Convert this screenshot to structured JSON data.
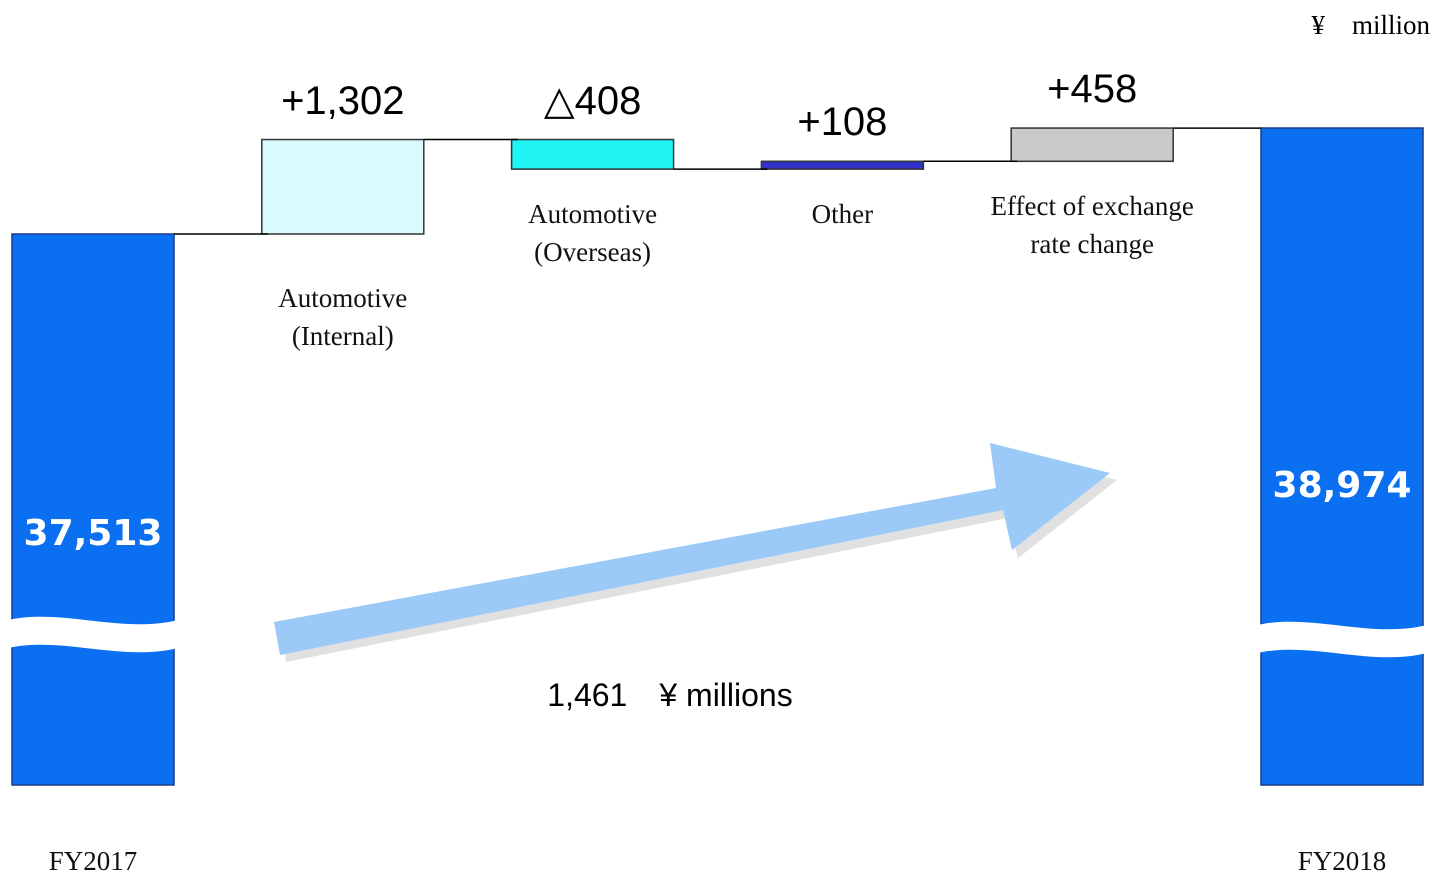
{
  "chart_data": {
    "type": "waterfall",
    "unit": "¥　million",
    "annotation": "1,461　¥ millions",
    "categories": [
      "FY2017",
      "Automotive (Internal)",
      "Automotive (Overseas)",
      "Other",
      "Effect of exchange rate change",
      "FY2018"
    ],
    "values": [
      37513,
      1302,
      -408,
      108,
      458,
      38974
    ],
    "value_labels": [
      "37,513",
      "+1,302",
      "△408",
      "+108",
      "+458",
      "38,974"
    ],
    "colors": [
      "#0b6ff2",
      "#dafbfd",
      "#1ff3f3",
      "#3232c8",
      "#c9c9c9",
      "#0b6ff2"
    ]
  }
}
